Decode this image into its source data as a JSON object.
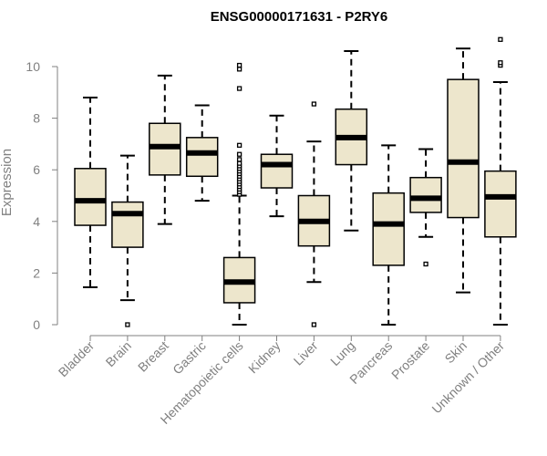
{
  "chart_data": {
    "type": "box",
    "title": "ENSG00000171631 - P2RY6",
    "xlabel": "",
    "ylabel": "Expression",
    "ylim": [
      0,
      11
    ],
    "yticks": [
      0,
      2,
      4,
      6,
      8,
      10
    ],
    "grid": false,
    "box_color": "#ede6cc",
    "categories": [
      "Bladder",
      "Brain",
      "Breast",
      "Gastric",
      "Hematopoietic cells",
      "Kidney",
      "Liver",
      "Lung",
      "Pancreas",
      "Prostate",
      "Skin",
      "Unknown / Other"
    ],
    "boxes": [
      {
        "whisker_low": 1.45,
        "q1": 3.85,
        "median": 4.8,
        "q3": 6.05,
        "whisker_high": 8.8,
        "outliers": []
      },
      {
        "whisker_low": 0.95,
        "q1": 3.0,
        "median": 4.3,
        "q3": 4.75,
        "whisker_high": 6.55,
        "outliers": [
          0.0
        ]
      },
      {
        "whisker_low": 3.9,
        "q1": 5.8,
        "median": 6.9,
        "q3": 7.8,
        "whisker_high": 9.65,
        "outliers": []
      },
      {
        "whisker_low": 4.8,
        "q1": 5.75,
        "median": 6.65,
        "q3": 7.25,
        "whisker_high": 8.5,
        "outliers": []
      },
      {
        "whisker_low": 0.0,
        "q1": 0.85,
        "median": 1.65,
        "q3": 2.6,
        "whisker_high": 5.0,
        "outliers": [
          5.05,
          5.15,
          5.25,
          5.35,
          5.45,
          5.55,
          5.65,
          5.75,
          5.85,
          5.95,
          6.05,
          6.15,
          6.25,
          6.4,
          6.6,
          6.95,
          9.15,
          9.9,
          10.05
        ]
      },
      {
        "whisker_low": 4.2,
        "q1": 5.3,
        "median": 6.2,
        "q3": 6.6,
        "whisker_high": 8.1,
        "outliers": []
      },
      {
        "whisker_low": 1.65,
        "q1": 3.05,
        "median": 4.0,
        "q3": 5.0,
        "whisker_high": 7.1,
        "outliers": [
          0.0,
          8.55
        ]
      },
      {
        "whisker_low": 3.65,
        "q1": 6.2,
        "median": 7.25,
        "q3": 8.35,
        "whisker_high": 10.6,
        "outliers": []
      },
      {
        "whisker_low": 0.0,
        "q1": 2.3,
        "median": 3.9,
        "q3": 5.1,
        "whisker_high": 6.95,
        "outliers": []
      },
      {
        "whisker_low": 3.4,
        "q1": 4.35,
        "median": 4.9,
        "q3": 5.7,
        "whisker_high": 6.8,
        "outliers": [
          2.35
        ]
      },
      {
        "whisker_low": 1.25,
        "q1": 4.15,
        "median": 6.3,
        "q3": 9.5,
        "whisker_high": 10.7,
        "outliers": []
      },
      {
        "whisker_low": 0.0,
        "q1": 3.4,
        "median": 4.95,
        "q3": 5.95,
        "whisker_high": 9.4,
        "outliers": [
          10.05,
          10.15,
          11.05
        ]
      }
    ]
  }
}
